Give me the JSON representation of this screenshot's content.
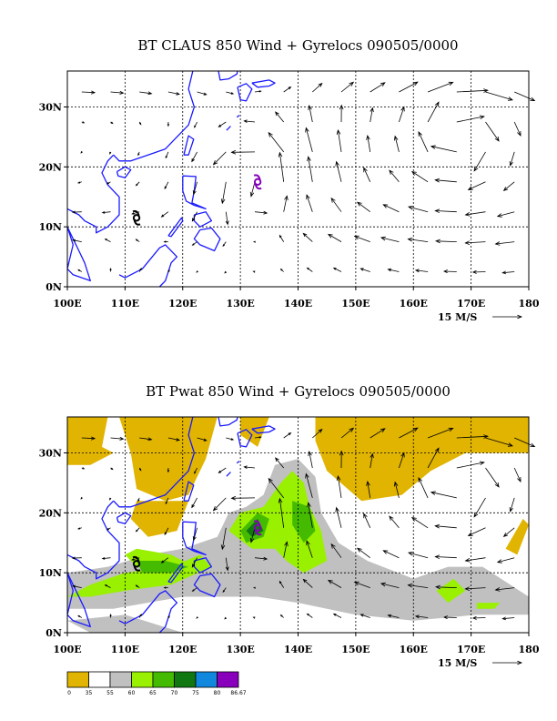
{
  "chart_data": [
    {
      "type": "vector",
      "title": "BT CLAUS 850 Wind + Gyrelocs 090505/0000",
      "x_ticks": [
        "100E",
        "110E",
        "120E",
        "130E",
        "140E",
        "150E",
        "160E",
        "170E",
        "180"
      ],
      "y_ticks": [
        "0N",
        "10N",
        "20N",
        "30N"
      ],
      "xlim": [
        100,
        180
      ],
      "ylim": [
        0,
        36
      ],
      "grid": true,
      "reference_vector": "15 M/S",
      "gyre_markers": [
        {
          "lon": 133,
          "lat": 17.5,
          "color": "#8800bb"
        },
        {
          "lon": 112,
          "lat": 11.5,
          "color": "#000000"
        }
      ]
    },
    {
      "type": "filled-contour+vector",
      "title": "BT Pwat 850 Wind + Gyrelocs 090505/0000",
      "x_ticks": [
        "100E",
        "110E",
        "120E",
        "130E",
        "140E",
        "150E",
        "160E",
        "170E",
        "180"
      ],
      "y_ticks": [
        "0N",
        "10N",
        "20N",
        "30N"
      ],
      "xlim": [
        100,
        180
      ],
      "ylim": [
        0,
        36
      ],
      "grid": true,
      "reference_vector": "15 M/S",
      "gyre_markers": [
        {
          "lon": 133,
          "lat": 17.5,
          "color": "#8800bb"
        },
        {
          "lon": 112,
          "lat": 11.5,
          "color": "#000000"
        }
      ],
      "colorbar": {
        "levels": [
          "0",
          "35",
          "55",
          "60",
          "65",
          "70",
          "75",
          "80",
          "86.67"
        ],
        "colors": [
          "#e0b400",
          "#ffffff",
          "#c0c0c0",
          "#99f000",
          "#44bb00",
          "#117711",
          "#1188dd",
          "#8800bb"
        ]
      }
    }
  ]
}
